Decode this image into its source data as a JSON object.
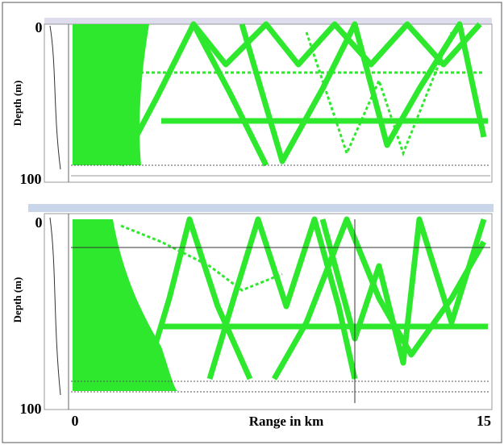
{
  "panels": [
    {
      "y_label": "Depth (m)",
      "y_top": "0",
      "y_bottom": "100"
    },
    {
      "y_label": "Depth (m)",
      "y_top": "0",
      "y_bottom": "100"
    }
  ],
  "x_axis": {
    "label": "Range in km",
    "start": "0",
    "end": "15"
  }
}
